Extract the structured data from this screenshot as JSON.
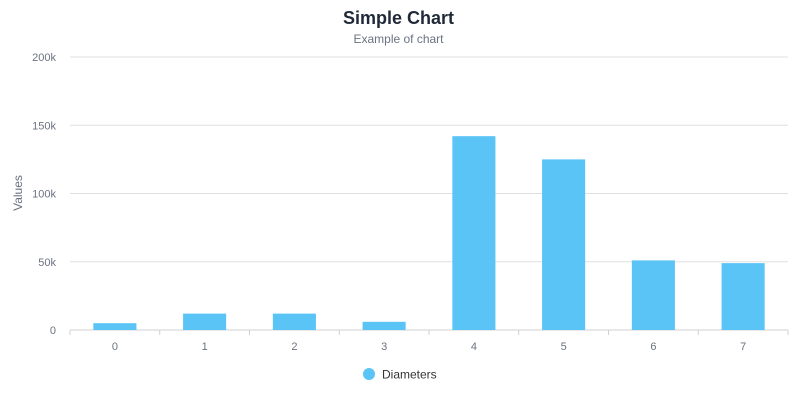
{
  "chart_data": {
    "type": "bar",
    "title": "Simple Chart",
    "subtitle": "Example of chart",
    "xlabel": "",
    "ylabel": "Values",
    "categories": [
      "0",
      "1",
      "2",
      "3",
      "4",
      "5",
      "6",
      "7"
    ],
    "series": [
      {
        "name": "Diameters",
        "color": "#5BC4F7",
        "values": [
          5000,
          12000,
          12000,
          6000,
          142000,
          125000,
          51000,
          49000
        ]
      }
    ],
    "ylim": [
      0,
      200000
    ],
    "yticks": [
      {
        "value": 0,
        "label": "0"
      },
      {
        "value": 50000,
        "label": "50k"
      },
      {
        "value": 100000,
        "label": "100k"
      },
      {
        "value": 150000,
        "label": "150k"
      },
      {
        "value": 200000,
        "label": "200k"
      }
    ],
    "grid": true,
    "legend_position": "bottom-center"
  }
}
